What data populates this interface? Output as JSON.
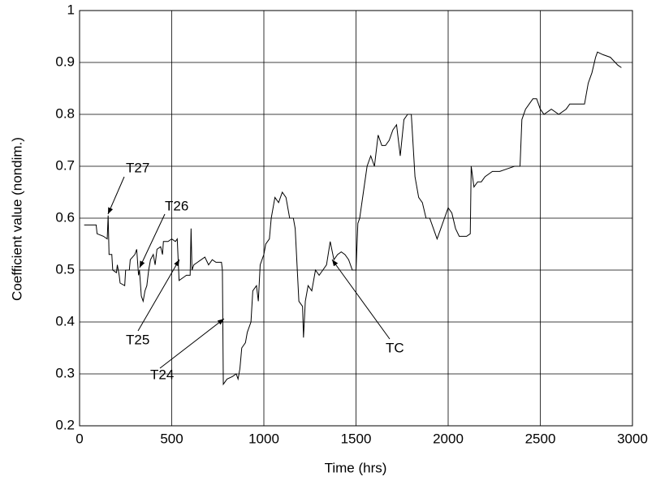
{
  "chart_data": {
    "type": "line",
    "x_label": "Time (hrs)",
    "y_label": "Coefficient value (nondim.)",
    "xlim": [
      0,
      3000
    ],
    "ylim": [
      0.2,
      1
    ],
    "xticks": [
      0,
      500,
      1000,
      1500,
      2000,
      2500,
      3000
    ],
    "yticks": [
      0.2,
      0.3,
      0.4,
      0.5,
      0.6,
      0.7,
      0.8,
      0.9,
      1
    ],
    "grid": true,
    "annotations": [
      "T27",
      "T26",
      "T25",
      "T24",
      "TC"
    ],
    "series": [
      {
        "color": "#000000",
        "x": [
          25,
          90,
          95,
          130,
          150,
          155,
          160,
          175,
          180,
          200,
          205,
          215,
          220,
          245,
          250,
          270,
          275,
          300,
          310,
          320,
          325,
          335,
          345,
          355,
          365,
          375,
          385,
          400,
          410,
          420,
          440,
          450,
          455,
          480,
          500,
          520,
          530,
          540,
          560,
          580,
          600,
          605,
          610,
          620,
          640,
          660,
          680,
          700,
          720,
          740,
          770,
          775,
          780,
          800,
          830,
          850,
          860,
          870,
          880,
          900,
          910,
          930,
          940,
          960,
          970,
          980,
          1000,
          1010,
          1030,
          1040,
          1060,
          1080,
          1100,
          1120,
          1140,
          1160,
          1170,
          1190,
          1210,
          1215,
          1225,
          1240,
          1260,
          1280,
          1300,
          1320,
          1340,
          1360,
          1380,
          1400,
          1420,
          1440,
          1460,
          1480,
          1500,
          1510,
          1520,
          1540,
          1560,
          1580,
          1600,
          1620,
          1640,
          1660,
          1680,
          1700,
          1720,
          1740,
          1760,
          1780,
          1800,
          1820,
          1840,
          1860,
          1880,
          1900,
          1920,
          1940,
          1960,
          1980,
          2000,
          2020,
          2040,
          2060,
          2080,
          2100,
          2120,
          2125,
          2140,
          2160,
          2180,
          2200,
          2240,
          2280,
          2320,
          2360,
          2390,
          2400,
          2420,
          2440,
          2460,
          2480,
          2500,
          2520,
          2560,
          2600,
          2640,
          2660,
          2700,
          2740,
          2760,
          2780,
          2800,
          2810,
          2840,
          2880,
          2920,
          2940
        ],
        "values": [
          0.587,
          0.587,
          0.57,
          0.565,
          0.56,
          0.605,
          0.53,
          0.53,
          0.5,
          0.495,
          0.51,
          0.49,
          0.475,
          0.47,
          0.5,
          0.5,
          0.52,
          0.53,
          0.54,
          0.49,
          0.5,
          0.45,
          0.44,
          0.46,
          0.47,
          0.5,
          0.52,
          0.53,
          0.51,
          0.54,
          0.545,
          0.53,
          0.555,
          0.555,
          0.56,
          0.555,
          0.56,
          0.48,
          0.485,
          0.49,
          0.49,
          0.58,
          0.5,
          0.51,
          0.515,
          0.52,
          0.525,
          0.51,
          0.52,
          0.515,
          0.515,
          0.5,
          0.28,
          0.29,
          0.295,
          0.3,
          0.29,
          0.31,
          0.35,
          0.36,
          0.38,
          0.4,
          0.46,
          0.47,
          0.44,
          0.51,
          0.53,
          0.55,
          0.56,
          0.6,
          0.64,
          0.63,
          0.65,
          0.64,
          0.6,
          0.6,
          0.58,
          0.44,
          0.43,
          0.37,
          0.44,
          0.47,
          0.46,
          0.5,
          0.49,
          0.5,
          0.51,
          0.555,
          0.52,
          0.53,
          0.535,
          0.53,
          0.52,
          0.5,
          0.5,
          0.59,
          0.6,
          0.65,
          0.7,
          0.72,
          0.7,
          0.76,
          0.74,
          0.74,
          0.75,
          0.77,
          0.78,
          0.72,
          0.79,
          0.8,
          0.8,
          0.68,
          0.64,
          0.63,
          0.6,
          0.6,
          0.58,
          0.56,
          0.58,
          0.6,
          0.62,
          0.61,
          0.58,
          0.565,
          0.565,
          0.565,
          0.57,
          0.7,
          0.66,
          0.67,
          0.67,
          0.68,
          0.69,
          0.69,
          0.695,
          0.7,
          0.7,
          0.79,
          0.81,
          0.82,
          0.83,
          0.83,
          0.81,
          0.8,
          0.81,
          0.8,
          0.81,
          0.82,
          0.82,
          0.82,
          0.86,
          0.88,
          0.91,
          0.92,
          0.915,
          0.91,
          0.895,
          0.89
        ]
      }
    ]
  }
}
